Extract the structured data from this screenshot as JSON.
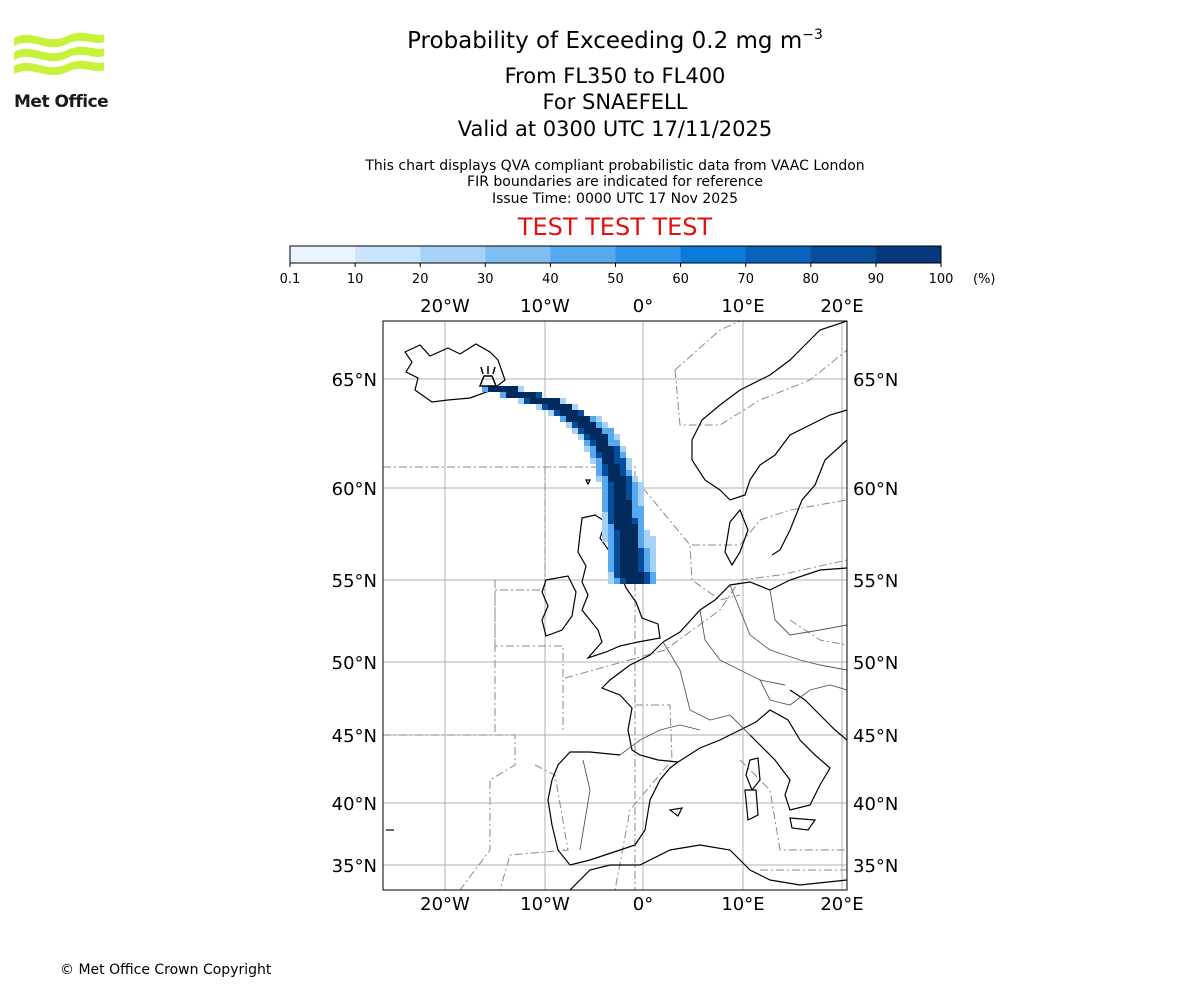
{
  "header": {
    "title_text": "Probability of Exceeding 0.2 mg m",
    "title_exp": "−3",
    "levels": "From FL350 to FL400",
    "volcano": "For SNAEFELL",
    "valid": "Valid at 0300 UTC 17/11/2025",
    "info_line1": "This chart displays QVA compliant probabilistic data from VAAC London",
    "info_line2": "FIR boundaries are indicated for reference",
    "issue_time": "Issue Time: 0000 UTC 17 Nov 2025",
    "test_label": "TEST TEST TEST"
  },
  "logo": {
    "name": "Met Office",
    "icon": "met-office-wave-logo",
    "color": "#c6f23a"
  },
  "colorbar": {
    "ticks": [
      "0.1",
      "10",
      "20",
      "30",
      "40",
      "50",
      "60",
      "70",
      "80",
      "90",
      "100"
    ],
    "unit": "(%)",
    "colors": [
      "#eaf4ff",
      "#c9e4fb",
      "#a7d2f7",
      "#7fbef3",
      "#56a8ef",
      "#2f93ea",
      "#0d7ad9",
      "#0863bd",
      "#064d9c",
      "#043a7c",
      "#032a5c"
    ]
  },
  "map": {
    "lon_labels": [
      "20°W",
      "10°W",
      "0°",
      "10°E",
      "20°E"
    ],
    "lat_labels": [
      "65°N",
      "60°N",
      "55°N",
      "50°N",
      "45°N",
      "40°N",
      "35°N"
    ],
    "gridlines": true,
    "volcano_marker": "volcano-icon",
    "plume_colors": {
      "core": "#032a5c",
      "mid": "#064d9c",
      "edge": "#56a8ef",
      "fringe": "#a7d2f7"
    }
  },
  "footer": {
    "copyright": "© Met Office Crown Copyright"
  }
}
